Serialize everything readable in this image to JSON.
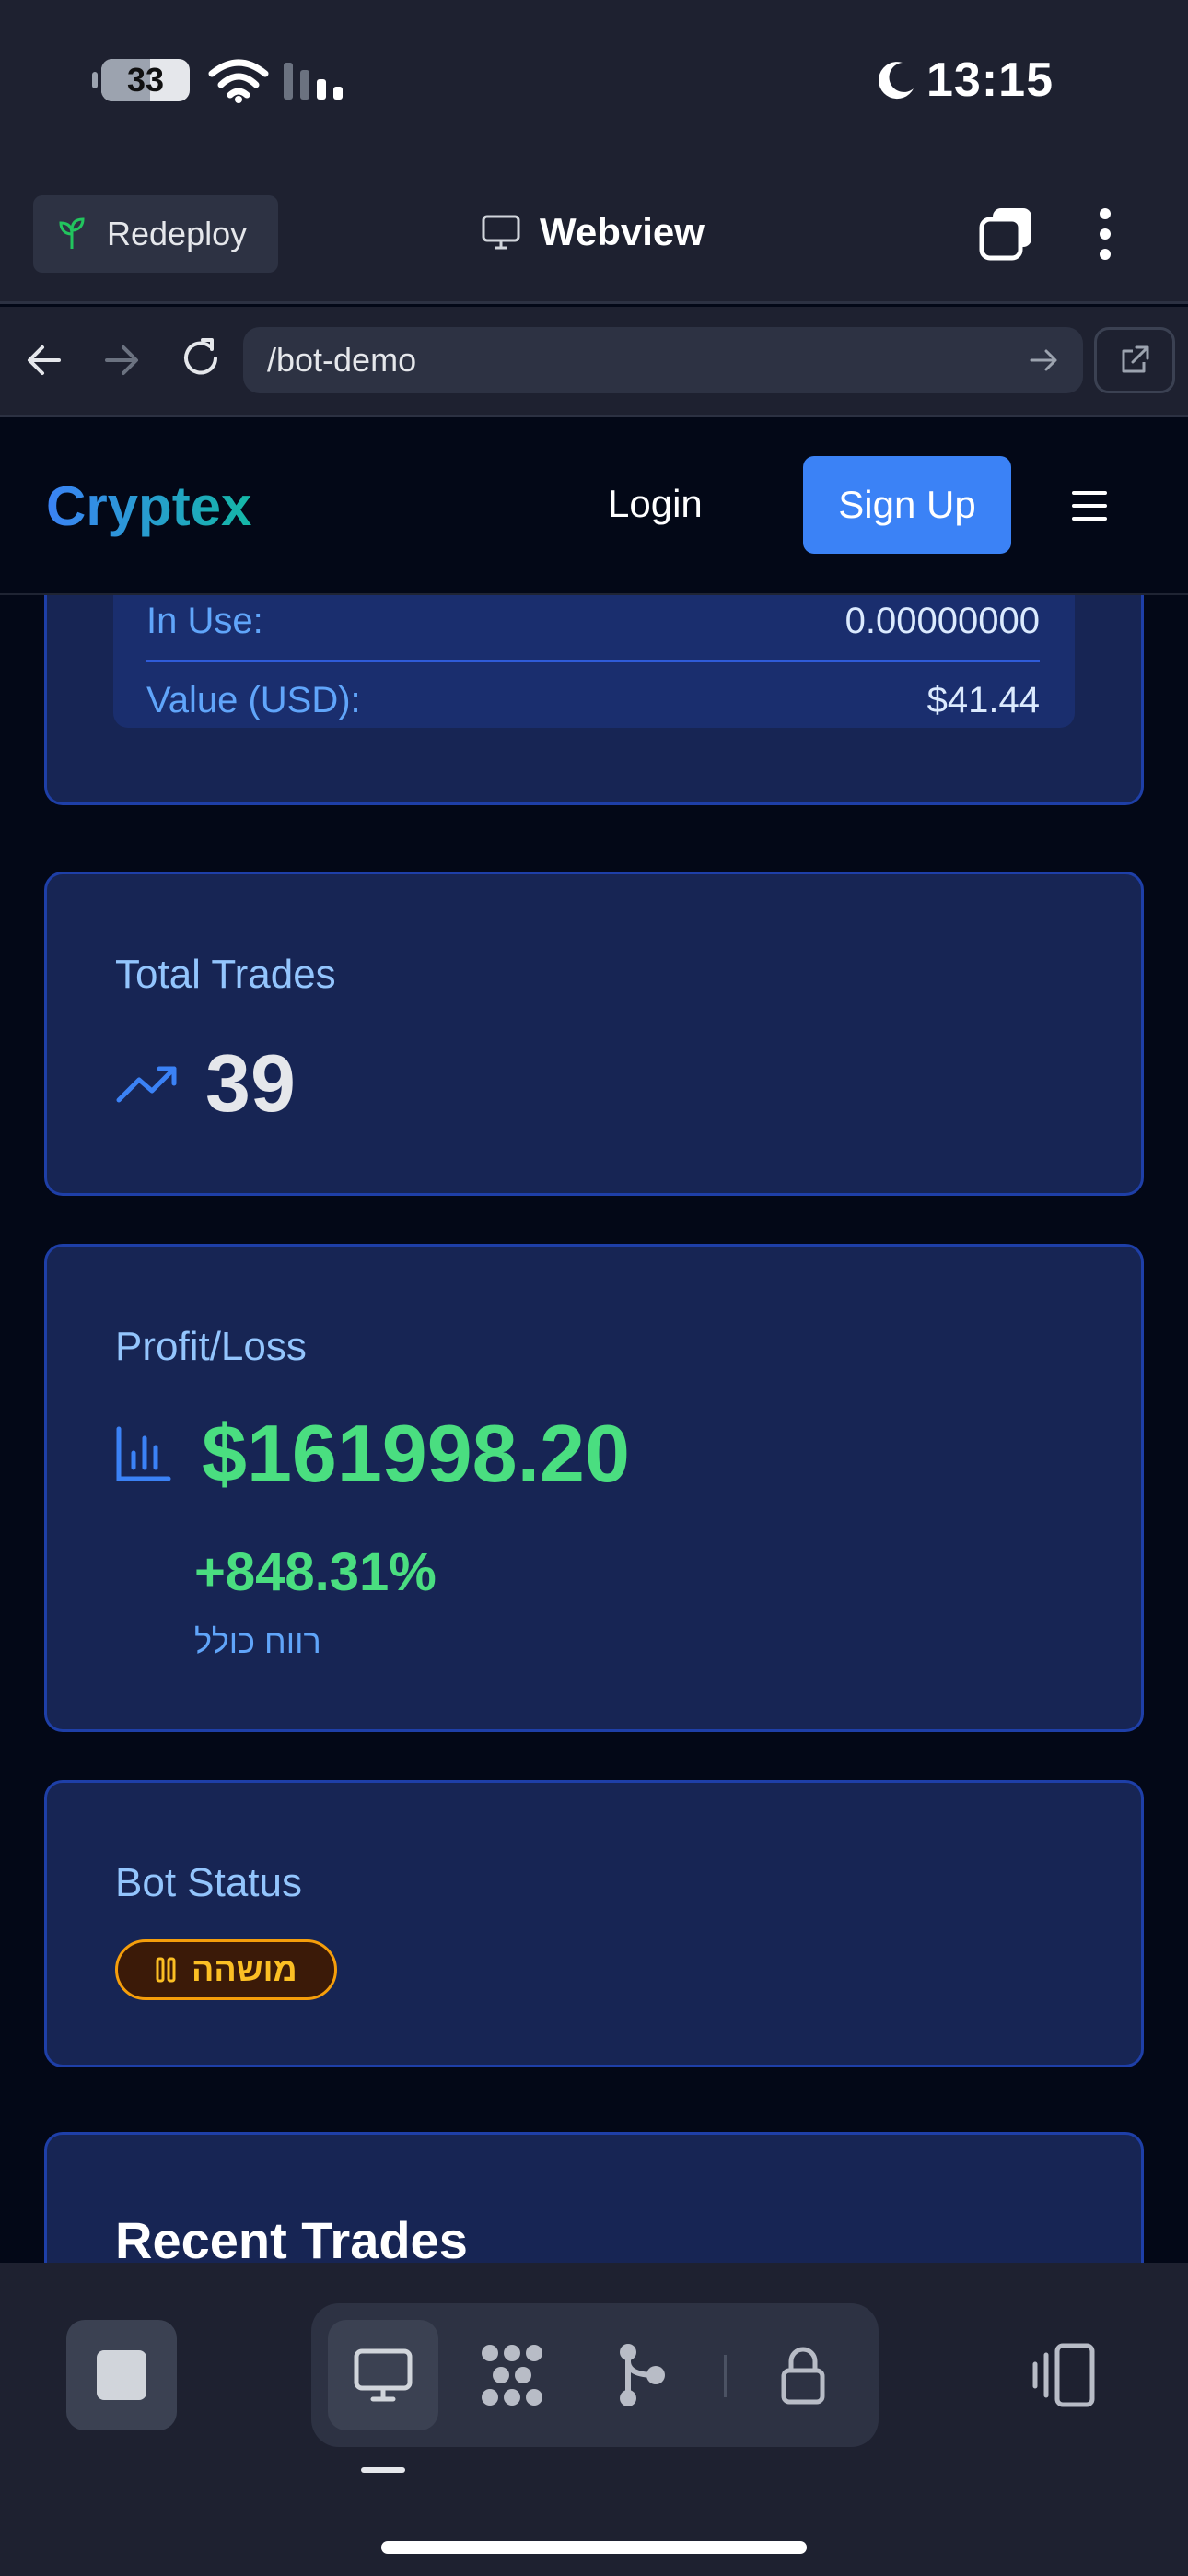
{
  "status_bar": {
    "battery": "33",
    "time": "13:15",
    "icons": [
      "battery-icon",
      "wifi-icon",
      "signal-icon",
      "moon-icon"
    ]
  },
  "toolbar": {
    "redeploy_label": "Redeploy",
    "webview_label": "Webview",
    "icons": [
      "sprout-icon",
      "monitor-icon",
      "tabs-icon",
      "more-vertical-icon"
    ]
  },
  "urlbar": {
    "url": "/bot-demo",
    "icons": [
      "back-arrow-icon",
      "forward-arrow-icon",
      "reload-icon",
      "go-arrow-icon",
      "external-link-icon"
    ]
  },
  "app_nav": {
    "brand": "Cryptex",
    "login_label": "Login",
    "signup_label": "Sign Up",
    "menu_icon": "hamburger-icon"
  },
  "wallet": {
    "in_use_label": "In Use:",
    "in_use_value": "0.00000000",
    "value_label": "Value (USD):",
    "value_amount": "$41.44"
  },
  "total_trades": {
    "title": "Total Trades",
    "value": "39",
    "icon": "trending-up-icon"
  },
  "profit_loss": {
    "title": "Profit/Loss",
    "value": "$161998.20",
    "percent": "+848.31%",
    "subtitle": "רווח כולל",
    "icon": "bar-chart-icon"
  },
  "bot_status": {
    "title": "Bot Status",
    "badge": "מושהה",
    "icon": "pause-icon",
    "colors": {
      "badge_bg": "#3b1a08",
      "badge_border": "#f59e0b",
      "badge_text": "#fbbf24"
    }
  },
  "recent_trades": {
    "title": "Recent Trades"
  },
  "bottom_bar": {
    "icons": [
      "stop-icon",
      "monitor-icon",
      "grid-dots-icon",
      "branch-icon",
      "lock-icon",
      "device-rotate-icon"
    ]
  },
  "colors": {
    "accent": "#3b82f6",
    "card_bg": "#172554",
    "card_border": "#1e3fa8",
    "positive": "#4ade80",
    "muted_blue": "#93c5fd"
  }
}
